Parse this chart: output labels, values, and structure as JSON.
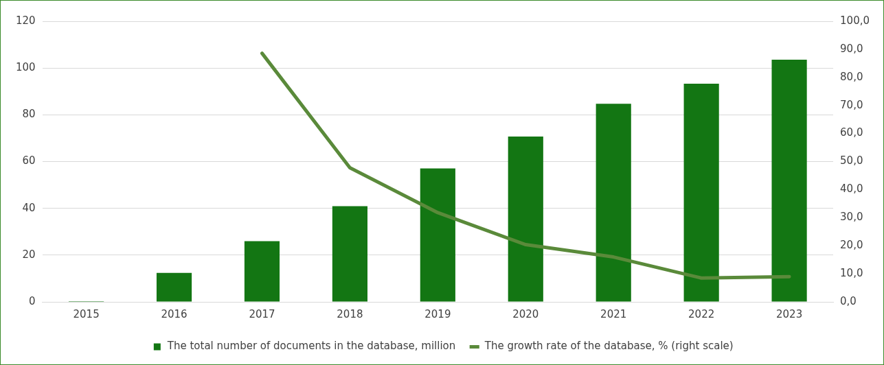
{
  "chart_data": {
    "type": "bar",
    "categories": [
      "2015",
      "2016",
      "2017",
      "2018",
      "2019",
      "2020",
      "2021",
      "2022",
      "2023"
    ],
    "series": [
      {
        "name": "The total number of documents in the database, million",
        "color": "#137613",
        "values": [
          0.3,
          12.4,
          26.0,
          40.9,
          57.1,
          70.7,
          84.7,
          93.3,
          103.6
        ]
      },
      {
        "name": "The growth rate of the database, % (right scale)",
        "type": "line",
        "axis": "y2",
        "color": "#5a8a3a",
        "values": [
          null,
          null,
          88.6,
          47.8,
          31.8,
          20.4,
          16.0,
          8.5,
          9.0
        ]
      }
    ],
    "ylim": [
      0,
      120
    ],
    "yticks": [
      0,
      20,
      40,
      60,
      80,
      100,
      120
    ],
    "y2lim": [
      0,
      100
    ],
    "y2ticks": [
      {
        "value": 0,
        "label": "0,0"
      },
      {
        "value": 10,
        "label": "10,0"
      },
      {
        "value": 20,
        "label": "20,0"
      },
      {
        "value": 30,
        "label": "30,0"
      },
      {
        "value": 40,
        "label": "40,0"
      },
      {
        "value": 50,
        "label": "50,0"
      },
      {
        "value": 60,
        "label": "60,0"
      },
      {
        "value": 70,
        "label": "70,0"
      },
      {
        "value": 80,
        "label": "80,0"
      },
      {
        "value": 90,
        "label": "90,0"
      },
      {
        "value": 100,
        "label": "100,0"
      }
    ],
    "grid": "y",
    "legend": "bottom",
    "marker": "none",
    "line_style": "solid"
  }
}
